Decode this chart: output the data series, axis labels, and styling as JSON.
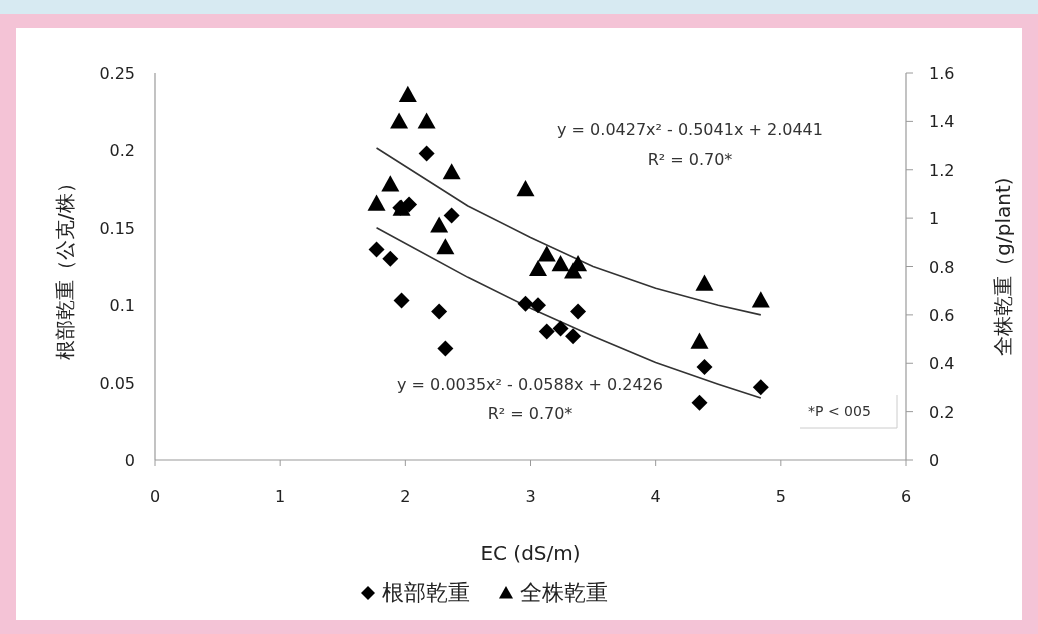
{
  "chart_data": {
    "type": "scatter",
    "xlabel": "EC (dS/m)",
    "ylabel": "根部乾重（公克/株）",
    "y2label": "全株乾重（g/plant)",
    "xlim": [
      0,
      6
    ],
    "xticks": [
      0,
      1,
      2,
      3,
      4,
      5,
      6
    ],
    "ylim": [
      0,
      0.25
    ],
    "yticks": [
      0,
      0.05,
      0.1,
      0.15,
      0.2,
      0.25
    ],
    "y2lim": [
      0,
      1.6
    ],
    "y2ticks": [
      0,
      0.2,
      0.4,
      0.6,
      0.8,
      1,
      1.2,
      1.4,
      1.6
    ],
    "grid": false,
    "legend": "bottom",
    "series": [
      {
        "name": "根部乾重",
        "type": "scatter",
        "marker": "diamond",
        "color": "#000000",
        "x": [
          1.77,
          1.88,
          1.97,
          1.96,
          2.03,
          2.17,
          2.27,
          2.32,
          2.37,
          2.96,
          3.06,
          3.13,
          3.24,
          3.34,
          3.38,
          4.39,
          4.35,
          4.84
        ],
        "values": [
          0.136,
          0.13,
          0.103,
          0.163,
          0.165,
          0.198,
          0.096,
          0.072,
          0.158,
          0.101,
          0.1,
          0.083,
          0.085,
          0.08,
          0.096,
          0.06,
          0.037,
          0.047
        ]
      },
      {
        "name": "全株乾重",
        "type": "scatter",
        "marker": "triangle",
        "axis": "y2",
        "color": "#000000",
        "x": [
          2.02,
          1.95,
          2.17,
          2.37,
          1.88,
          1.77,
          1.97,
          2.27,
          2.32,
          2.96,
          3.13,
          3.06,
          3.24,
          3.38,
          3.34,
          4.39,
          4.84,
          4.35
        ],
        "values": [
          1.51,
          1.4,
          1.4,
          1.19,
          1.14,
          1.06,
          1.04,
          0.97,
          0.88,
          1.12,
          0.85,
          0.79,
          0.81,
          0.81,
          0.78,
          0.73,
          0.66,
          0.49
        ]
      },
      {
        "type": "line",
        "color": "#333333",
        "x": [
          1.77,
          2.5,
          3,
          3.5,
          4,
          4.5,
          4.84
        ],
        "values": [
          0.15,
          0.118,
          0.098,
          0.08,
          0.063,
          0.049,
          0.04
        ]
      },
      {
        "type": "line",
        "axis": "y2",
        "color": "#333333",
        "x": [
          1.77,
          2.5,
          3,
          3.5,
          4,
          4.5,
          4.84
        ],
        "values": [
          1.29,
          1.05,
          0.92,
          0.8,
          0.71,
          0.64,
          0.6
        ]
      }
    ],
    "annotations": [
      "y = 0.0427x² - 0.5041x + 2.0441",
      "R² = 0.70*",
      "y = 0.0035x² - 0.0588x + 0.2426",
      "R² = 0.70*",
      "*P < 005"
    ]
  }
}
